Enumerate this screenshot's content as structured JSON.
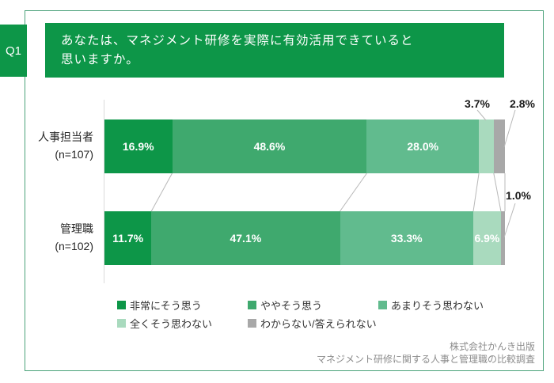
{
  "header": {
    "q_label": "Q1",
    "title_line1": "あなたは、マネジメント研修を実際に有効活用できていると",
    "title_line2": "思いますか。"
  },
  "chart_data": {
    "type": "bar",
    "stacked": true,
    "orientation": "horizontal",
    "categories": [
      "人事担当者",
      "管理職"
    ],
    "category_sublabels": [
      "(n=107)",
      "(n=102)"
    ],
    "series": [
      {
        "name": "非常にそう思う",
        "color": "#0D9648",
        "values": [
          16.9,
          11.7
        ]
      },
      {
        "name": "ややそう思う",
        "color": "#3FA96E",
        "values": [
          48.6,
          47.1
        ]
      },
      {
        "name": "あまりそう思わない",
        "color": "#61BB8E",
        "values": [
          28.0,
          33.3
        ]
      },
      {
        "name": "全くそう思わない",
        "color": "#A9DABE",
        "values": [
          3.7,
          6.9
        ]
      },
      {
        "name": "わからない/答えられない",
        "color": "#A8A8A8",
        "values": [
          2.8,
          1.0
        ]
      }
    ],
    "value_labels": [
      [
        "16.9%",
        "48.6%",
        "28.0%",
        "3.7%",
        "2.8%"
      ],
      [
        "11.7%",
        "47.1%",
        "33.3%",
        "6.9%",
        "1.0%"
      ]
    ],
    "xlim": [
      0,
      100
    ],
    "grid": false,
    "legend_position": "bottom"
  },
  "footer": {
    "line1": "株式会社かんき出版",
    "line2": "マネジメント研修に関する人事と管理職の比較調査"
  },
  "colors": {
    "header_green": "#0D9648",
    "border_green": "#4BA27A",
    "axis_gray": "#D9D9D9",
    "connector_gray": "#B8B8B8",
    "footer_gray": "#8C8C8C"
  }
}
